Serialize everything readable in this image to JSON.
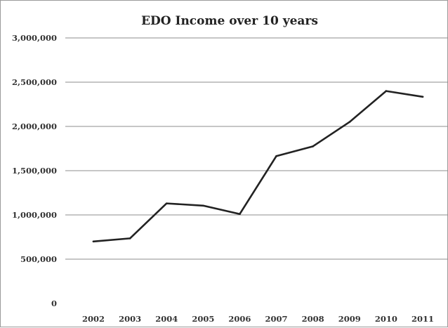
{
  "chart_data": {
    "type": "line",
    "title": "EDO Income over 10 years",
    "xlabel": "",
    "ylabel": "",
    "categories": [
      "2002",
      "2003",
      "2004",
      "2005",
      "2006",
      "2007",
      "2008",
      "2009",
      "2010",
      "2011"
    ],
    "series": [
      {
        "values": [
          700000,
          735000,
          1130000,
          1105000,
          1010000,
          1665000,
          1775000,
          2050000,
          2400000,
          2335000
        ]
      }
    ],
    "ylim": [
      0,
      3000000
    ],
    "yticks": [
      0,
      500000,
      1000000,
      1500000,
      2000000,
      2500000,
      3000000
    ],
    "ytick_labels": [
      "0",
      "500,000",
      "1,000,000",
      "1,500,000",
      "2,000,000",
      "2,500,000",
      "3,000,000"
    ],
    "grid": true,
    "legend": "none",
    "colors": {
      "line": "#222222",
      "grid": "#8c8c8c"
    }
  }
}
